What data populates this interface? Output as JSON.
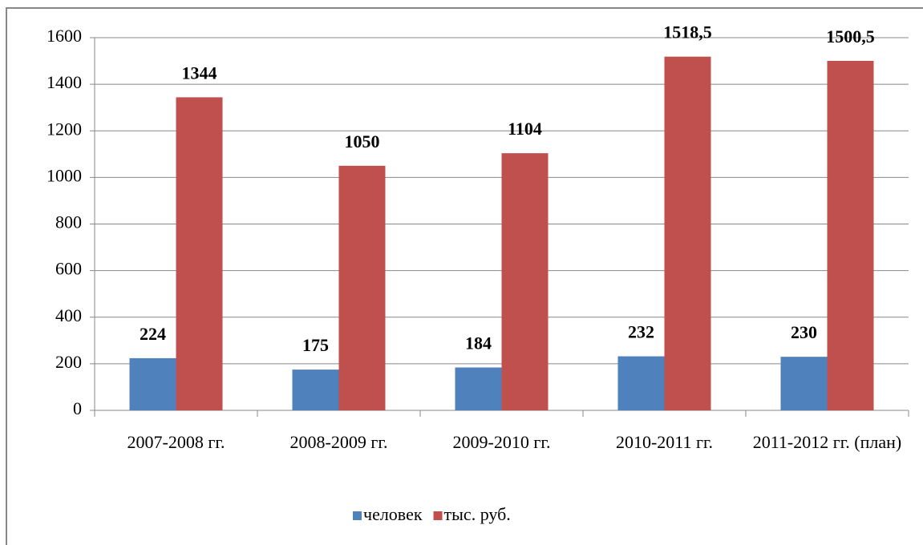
{
  "chart_data": {
    "type": "bar",
    "categories": [
      "2007-2008 гг.",
      "2008-2009 гг.",
      "2009-2010 гг.",
      "2010-2011 гг.",
      "2011-2012 гг. (план)"
    ],
    "series": [
      {
        "name": "человек",
        "color": "#4f81bd",
        "values": [
          224,
          175,
          184,
          232,
          230
        ]
      },
      {
        "name": "тыс. руб.",
        "color": "#c0504d",
        "values": [
          1344,
          1050,
          1104,
          1518.5,
          1500.5
        ],
        "value_labels": [
          "1344",
          "1050",
          "1104",
          "1518,5",
          "1500,5"
        ]
      }
    ],
    "ylim": [
      0,
      1600
    ],
    "yticks": [
      0,
      200,
      400,
      600,
      800,
      1000,
      1200,
      1400,
      1600
    ],
    "grid": true,
    "legend": "bottom"
  }
}
